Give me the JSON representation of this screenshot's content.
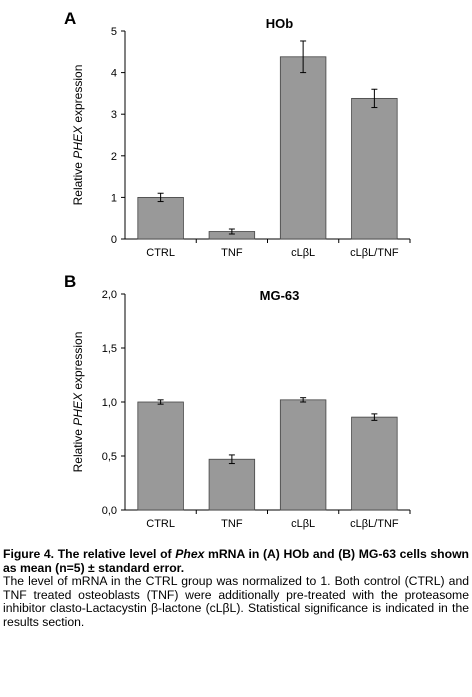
{
  "chart_data": [
    {
      "panel": "A",
      "title": "HOb",
      "type": "bar",
      "categories": [
        "CTRL",
        "TNF",
        "cLβL",
        "cLβL/TNF"
      ],
      "values": [
        1.0,
        0.18,
        4.38,
        3.38
      ],
      "errors": [
        0.1,
        0.06,
        0.38,
        0.22
      ],
      "ylabel_pre": "Relative ",
      "ylabel_em": "PHEX",
      "ylabel_post": " expression",
      "ylim": [
        0,
        5
      ],
      "yticks": [
        0,
        1,
        2,
        3,
        4,
        5
      ],
      "yticklabels": [
        "0",
        "1",
        "2",
        "3",
        "4",
        "5"
      ],
      "bar_color": "#999999",
      "grid": false
    },
    {
      "panel": "B",
      "title": "MG-63",
      "type": "bar",
      "categories": [
        "CTRL",
        "TNF",
        "cLβL",
        "cLβL/TNF"
      ],
      "values": [
        1.0,
        0.47,
        1.02,
        0.86
      ],
      "errors": [
        0.02,
        0.04,
        0.02,
        0.03
      ],
      "ylabel_pre": "Relative ",
      "ylabel_em": "PHEX",
      "ylabel_post": " expression",
      "ylim": [
        0,
        2
      ],
      "yticks": [
        0,
        0.5,
        1.0,
        1.5,
        2.0
      ],
      "yticklabels": [
        "0,0",
        "0,5",
        "1,0",
        "1,5",
        "2,0"
      ],
      "bar_color": "#999999",
      "grid": false
    }
  ],
  "caption": {
    "lead_1": "Figure 4. The relative level of ",
    "lead_em": "Phex",
    "lead_2": " mRNA in (A) HOb and (B) MG-63 cells shown as mean (n=5) ± standard error.",
    "body": "The level of mRNA in the CTRL group was normalized to 1. Both control (CTRL) and TNF treated osteoblasts (TNF) were additionally pre-treated with the proteasome inhibitor clasto-Lactacystin β-lactone (cLβL). Statistical significance is indicated in the results section."
  }
}
